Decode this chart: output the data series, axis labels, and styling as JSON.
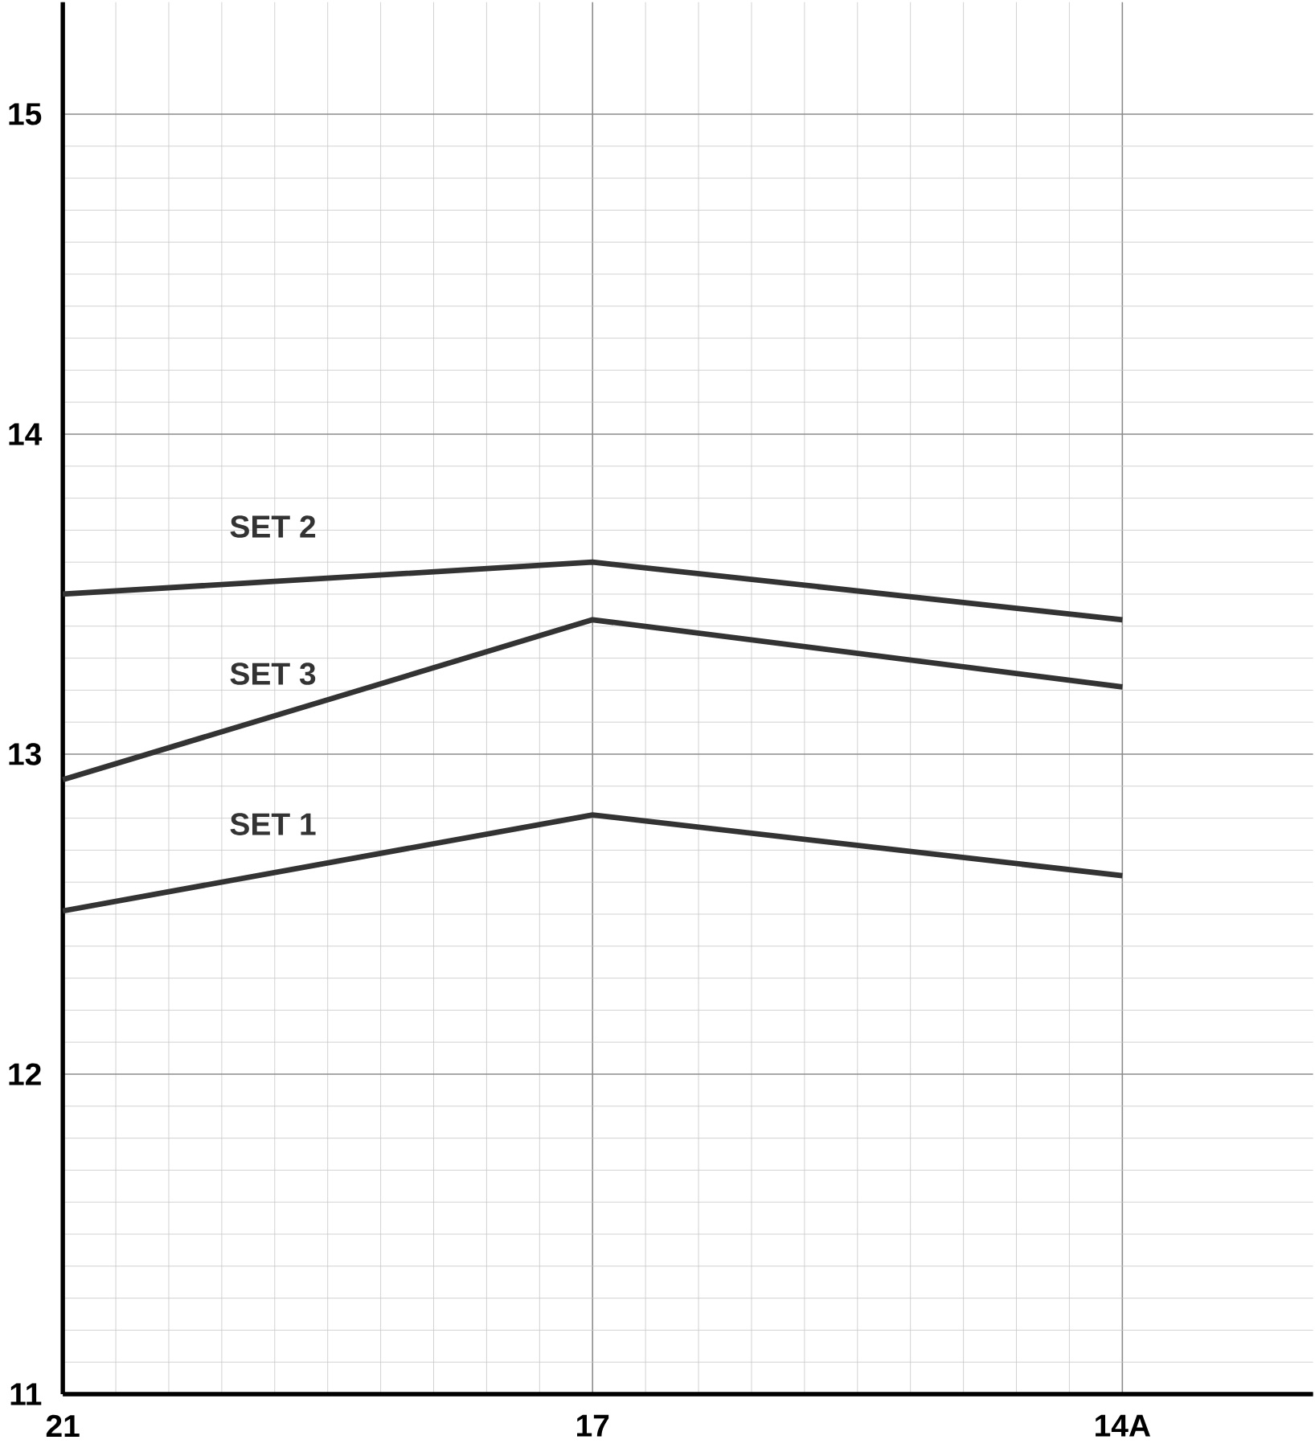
{
  "chart_data": {
    "type": "line",
    "categories": [
      "21",
      "17",
      "14A"
    ],
    "series": [
      {
        "name": "SET 2",
        "color": "#333333",
        "values": [
          13.5,
          13.6,
          13.42
        ]
      },
      {
        "name": "SET 3",
        "color": "#333333",
        "values": [
          12.92,
          13.42,
          13.21
        ]
      },
      {
        "name": "SET 1",
        "color": "#333333",
        "values": [
          12.51,
          12.81,
          12.62
        ]
      }
    ],
    "ylim": [
      11,
      15.35
    ],
    "yticks": [
      11,
      12,
      13,
      14,
      15
    ],
    "grid": true,
    "legend": false,
    "marker": "none",
    "line_style": "solid"
  }
}
